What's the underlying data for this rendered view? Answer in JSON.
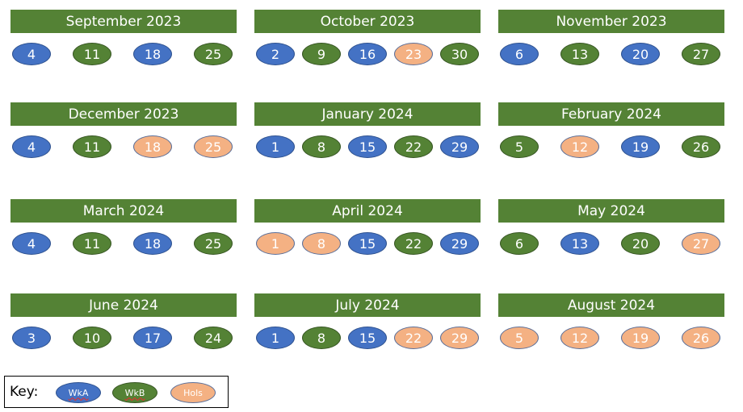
{
  "months": [
    {
      "title": "September 2023",
      "days": [
        {
          "d": "4",
          "t": "WkA"
        },
        {
          "d": "11",
          "t": "WkB"
        },
        {
          "d": "18",
          "t": "WkA"
        },
        {
          "d": "25",
          "t": "WkB"
        }
      ]
    },
    {
      "title": "October 2023",
      "days": [
        {
          "d": "2",
          "t": "WkA"
        },
        {
          "d": "9",
          "t": "WkB"
        },
        {
          "d": "16",
          "t": "WkA"
        },
        {
          "d": "23",
          "t": "Hols"
        },
        {
          "d": "30",
          "t": "WkB"
        }
      ]
    },
    {
      "title": "November 2023",
      "days": [
        {
          "d": "6",
          "t": "WkA"
        },
        {
          "d": "13",
          "t": "WkB"
        },
        {
          "d": "20",
          "t": "WkA"
        },
        {
          "d": "27",
          "t": "WkB"
        }
      ]
    },
    {
      "title": "December 2023",
      "days": [
        {
          "d": "4",
          "t": "WkA"
        },
        {
          "d": "11",
          "t": "WkB"
        },
        {
          "d": "18",
          "t": "Hols"
        },
        {
          "d": "25",
          "t": "Hols"
        }
      ]
    },
    {
      "title": "January 2024",
      "days": [
        {
          "d": "1",
          "t": "WkA"
        },
        {
          "d": "8",
          "t": "WkB"
        },
        {
          "d": "15",
          "t": "WkA"
        },
        {
          "d": "22",
          "t": "WkB"
        },
        {
          "d": "29",
          "t": "WkA"
        }
      ]
    },
    {
      "title": "February 2024",
      "days": [
        {
          "d": "5",
          "t": "WkB"
        },
        {
          "d": "12",
          "t": "Hols"
        },
        {
          "d": "19",
          "t": "WkA"
        },
        {
          "d": "26",
          "t": "WkB"
        }
      ]
    },
    {
      "title": "March 2024",
      "days": [
        {
          "d": "4",
          "t": "WkA"
        },
        {
          "d": "11",
          "t": "WkB"
        },
        {
          "d": "18",
          "t": "WkA"
        },
        {
          "d": "25",
          "t": "WkB"
        }
      ]
    },
    {
      "title": "April 2024",
      "days": [
        {
          "d": "1",
          "t": "Hols"
        },
        {
          "d": "8",
          "t": "Hols"
        },
        {
          "d": "15",
          "t": "WkA"
        },
        {
          "d": "22",
          "t": "WkB"
        },
        {
          "d": "29",
          "t": "WkA"
        }
      ]
    },
    {
      "title": "May 2024",
      "days": [
        {
          "d": "6",
          "t": "WkB"
        },
        {
          "d": "13",
          "t": "WkA"
        },
        {
          "d": "20",
          "t": "WkB"
        },
        {
          "d": "27",
          "t": "Hols"
        }
      ]
    },
    {
      "title": "June 2024",
      "days": [
        {
          "d": "3",
          "t": "WkA"
        },
        {
          "d": "10",
          "t": "WkB"
        },
        {
          "d": "17",
          "t": "WkA"
        },
        {
          "d": "24",
          "t": "WkB"
        }
      ]
    },
    {
      "title": "July 2024",
      "days": [
        {
          "d": "1",
          "t": "WkA"
        },
        {
          "d": "8",
          "t": "WkB"
        },
        {
          "d": "15",
          "t": "WkA"
        },
        {
          "d": "22",
          "t": "Hols"
        },
        {
          "d": "29",
          "t": "Hols"
        }
      ]
    },
    {
      "title": "August 2024",
      "days": [
        {
          "d": "5",
          "t": "Hols"
        },
        {
          "d": "12",
          "t": "Hols"
        },
        {
          "d": "19",
          "t": "Hols"
        },
        {
          "d": "26",
          "t": "Hols"
        }
      ]
    }
  ],
  "key": {
    "label": "Key:",
    "wka": "WkA",
    "wkb": "WkB",
    "hols": "Hols"
  },
  "colors": {
    "header": "#548235",
    "wka": "#4472c4",
    "wkb": "#548235",
    "hols": "#f4b183"
  }
}
